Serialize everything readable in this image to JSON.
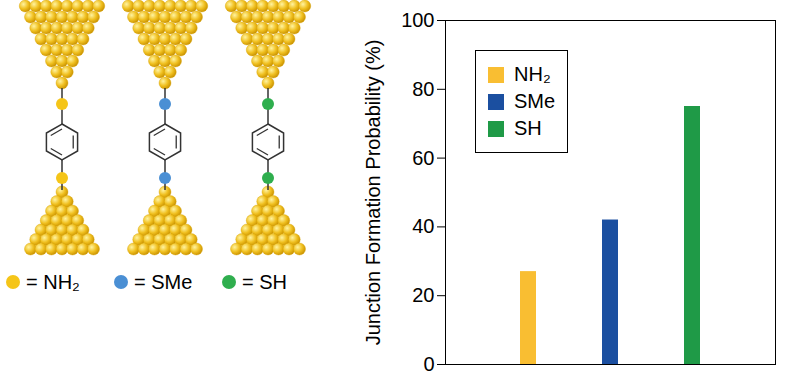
{
  "chart_data": {
    "type": "bar",
    "ylabel": "Junction Formation Probability (%)",
    "categories": [
      "NH₂",
      "SMe",
      "SH"
    ],
    "values": [
      27,
      42,
      75
    ],
    "colors": [
      "#f9be32",
      "#1b4fa0",
      "#1f9a47"
    ],
    "ylim": [
      0,
      100
    ],
    "yticks": [
      0,
      20,
      40,
      60,
      80,
      100
    ],
    "grid": false,
    "legend": "upper left",
    "tick_labels": "y"
  },
  "diagram": {
    "key": [
      {
        "text": "= NH₂",
        "color": "#f5c518"
      },
      {
        "text": "= SMe",
        "color": "#4a8fd4"
      },
      {
        "text": "= SH",
        "color": "#2fae4e"
      }
    ]
  }
}
